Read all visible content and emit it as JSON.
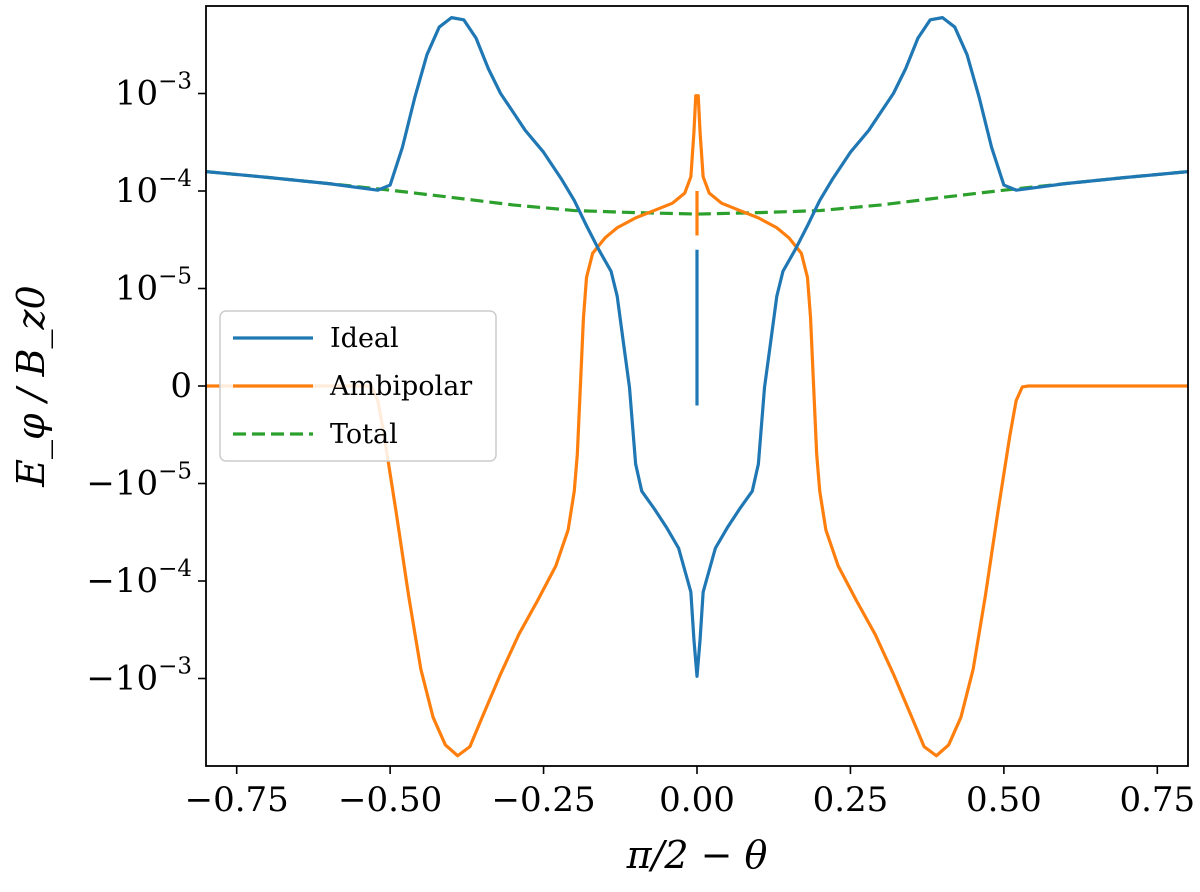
{
  "chart_data": {
    "type": "line",
    "title": "",
    "xlabel": "π/2 − θ",
    "ylabel": "E_φ / B_z0",
    "xlim": [
      -0.8,
      0.8
    ],
    "y_scale": "symlog",
    "y_linthresh": 1e-05,
    "y_decades_shown_positive": [
      -5,
      -4,
      -3
    ],
    "y_decades_shown_negative": [
      -5,
      -4,
      -3
    ],
    "ylim": [
      -0.0063,
      0.0061
    ],
    "grid": false,
    "legend_position": "center-left",
    "x_ticks": [
      {
        "value": -0.75,
        "label": "−0.75"
      },
      {
        "value": -0.5,
        "label": "−0.50"
      },
      {
        "value": -0.25,
        "label": "−0.25"
      },
      {
        "value": 0.0,
        "label": "0.00"
      },
      {
        "value": 0.25,
        "label": "0.25"
      },
      {
        "value": 0.5,
        "label": "0.50"
      },
      {
        "value": 0.75,
        "label": "0.75"
      }
    ],
    "y_ticks": [
      {
        "value": 0.001,
        "base": "10",
        "exp": "−3"
      },
      {
        "value": 0.0001,
        "base": "10",
        "exp": "−4"
      },
      {
        "value": 1e-05,
        "base": "10",
        "exp": "−5"
      },
      {
        "value": 0,
        "base": "0",
        "exp": ""
      },
      {
        "value": -1e-05,
        "base": "−10",
        "exp": "−5"
      },
      {
        "value": -0.0001,
        "base": "−10",
        "exp": "−4"
      },
      {
        "value": -0.001,
        "base": "−10",
        "exp": "−3"
      }
    ],
    "series": [
      {
        "name": "Ideal",
        "color": "#1f77b4",
        "dash": "solid",
        "segments": [
          [
            [
              -0.8,
              0.000158
            ],
            [
              -0.7,
              0.000138
            ],
            [
              -0.6,
              0.000119
            ],
            [
              -0.52,
              0.000102
            ],
            [
              -0.5,
              0.000115
            ],
            [
              -0.48,
              0.00028
            ],
            [
              -0.46,
              0.0009
            ],
            [
              -0.44,
              0.0025
            ],
            [
              -0.42,
              0.0048
            ],
            [
              -0.4,
              0.006
            ],
            [
              -0.38,
              0.0057
            ],
            [
              -0.36,
              0.0037
            ],
            [
              -0.34,
              0.0018
            ],
            [
              -0.32,
              0.001
            ],
            [
              -0.3,
              0.00065
            ],
            [
              -0.28,
              0.00042
            ],
            [
              -0.25,
              0.00025
            ],
            [
              -0.22,
              0.00013
            ],
            [
              -0.2,
              8e-05
            ],
            [
              -0.18,
              4.4e-05
            ],
            [
              -0.16,
              2.5e-05
            ],
            [
              -0.14,
              1.5e-05
            ],
            [
              -0.13,
              9.2e-06
            ],
            [
              -0.12,
              4.5e-06
            ],
            [
              -0.11,
              -1.5e-07
            ],
            [
              -0.1,
              -8e-06
            ],
            [
              -0.09,
              -1.2e-05
            ],
            [
              -0.07,
              -1.8e-05
            ],
            [
              -0.05,
              -2.8e-05
            ],
            [
              -0.03,
              -4.6e-05
            ],
            [
              -0.015,
              -0.0001
            ],
            [
              -0.01,
              -0.00013
            ],
            [
              -0.005,
              -0.0004
            ],
            [
              0.0,
              -0.00095
            ],
            [
              0.005,
              -0.0004
            ],
            [
              0.01,
              -0.00013
            ],
            [
              0.015,
              -0.0001
            ],
            [
              0.03,
              -4.6e-05
            ],
            [
              0.05,
              -2.8e-05
            ],
            [
              0.07,
              -1.8e-05
            ],
            [
              0.09,
              -1.2e-05
            ],
            [
              0.1,
              -8e-06
            ],
            [
              0.11,
              -1.5e-07
            ],
            [
              0.12,
              4.5e-06
            ],
            [
              0.13,
              9.2e-06
            ],
            [
              0.14,
              1.5e-05
            ],
            [
              0.16,
              2.5e-05
            ],
            [
              0.18,
              4.4e-05
            ],
            [
              0.2,
              8e-05
            ],
            [
              0.22,
              0.00013
            ],
            [
              0.25,
              0.00025
            ],
            [
              0.28,
              0.00042
            ],
            [
              0.3,
              0.00065
            ],
            [
              0.32,
              0.001
            ],
            [
              0.34,
              0.0018
            ],
            [
              0.36,
              0.0037
            ],
            [
              0.38,
              0.0057
            ],
            [
              0.4,
              0.006
            ],
            [
              0.42,
              0.0048
            ],
            [
              0.44,
              0.0025
            ],
            [
              0.46,
              0.0009
            ],
            [
              0.48,
              0.00028
            ],
            [
              0.5,
              0.000115
            ],
            [
              0.52,
              0.000102
            ],
            [
              0.6,
              0.000119
            ],
            [
              0.7,
              0.000138
            ],
            [
              0.8,
              0.000158
            ]
          ],
          [
            [
              0.0,
              2.5e-05
            ],
            [
              0.0,
              -2e-06
            ]
          ]
        ]
      },
      {
        "name": "Ambipolar",
        "color": "#ff7f0e",
        "dash": "solid",
        "segments": [
          [
            [
              -0.8,
              0.0
            ],
            [
              -0.7,
              0.0
            ],
            [
              -0.6,
              0.0
            ],
            [
              -0.54,
              0.0
            ],
            [
              -0.53,
              -1e-07
            ],
            [
              -0.52,
              -1.5e-06
            ],
            [
              -0.51,
              -5e-06
            ],
            [
              -0.5,
              -9e-06
            ],
            [
              -0.49,
              -2e-05
            ],
            [
              -0.47,
              -0.00014
            ],
            [
              -0.45,
              -0.0008
            ],
            [
              -0.43,
              -0.0025
            ],
            [
              -0.41,
              -0.0048
            ],
            [
              -0.39,
              -0.0062
            ],
            [
              -0.37,
              -0.005
            ],
            [
              -0.35,
              -0.0025
            ],
            [
              -0.32,
              -0.0009
            ],
            [
              -0.29,
              -0.00035
            ],
            [
              -0.26,
              -0.00016
            ],
            [
              -0.23,
              -7e-05
            ],
            [
              -0.21,
              -3e-05
            ],
            [
              -0.2,
              -1.2e-05
            ],
            [
              -0.195,
              -7e-06
            ],
            [
              -0.19,
              0.0
            ],
            [
              -0.185,
              7e-06
            ],
            [
              -0.18,
              1.3e-05
            ],
            [
              -0.17,
              2.3e-05
            ],
            [
              -0.15,
              3.3e-05
            ],
            [
              -0.13,
              4.2e-05
            ],
            [
              -0.1,
              5.3e-05
            ],
            [
              -0.07,
              6.3e-05
            ],
            [
              -0.04,
              7.5e-05
            ],
            [
              -0.02,
              9.5e-05
            ],
            [
              -0.01,
              0.00014
            ],
            [
              -0.005,
              0.0004
            ],
            [
              -0.002,
              0.00095
            ],
            [
              0.002,
              0.00095
            ],
            [
              0.005,
              0.0004
            ],
            [
              0.01,
              0.00014
            ],
            [
              0.02,
              9.5e-05
            ],
            [
              0.04,
              7.5e-05
            ],
            [
              0.07,
              6.3e-05
            ],
            [
              0.1,
              5.3e-05
            ],
            [
              0.13,
              4.2e-05
            ],
            [
              0.15,
              3.3e-05
            ],
            [
              0.17,
              2.3e-05
            ],
            [
              0.18,
              1.3e-05
            ],
            [
              0.185,
              7e-06
            ],
            [
              0.19,
              0.0
            ],
            [
              0.195,
              -7e-06
            ],
            [
              0.2,
              -1.2e-05
            ],
            [
              0.21,
              -3e-05
            ],
            [
              0.23,
              -7e-05
            ],
            [
              0.26,
              -0.00016
            ],
            [
              0.29,
              -0.00035
            ],
            [
              0.32,
              -0.0009
            ],
            [
              0.35,
              -0.0025
            ],
            [
              0.37,
              -0.005
            ],
            [
              0.39,
              -0.0062
            ],
            [
              0.41,
              -0.0048
            ],
            [
              0.43,
              -0.0025
            ],
            [
              0.45,
              -0.0008
            ],
            [
              0.47,
              -0.00014
            ],
            [
              0.49,
              -2e-05
            ],
            [
              0.5,
              -9e-06
            ],
            [
              0.51,
              -5e-06
            ],
            [
              0.52,
              -1.5e-06
            ],
            [
              0.53,
              -1e-07
            ],
            [
              0.54,
              0.0
            ],
            [
              0.6,
              0.0
            ],
            [
              0.7,
              0.0
            ],
            [
              0.8,
              0.0
            ]
          ],
          [
            [
              0.0,
              0.0001
            ],
            [
              0.0,
              3.5e-05
            ]
          ]
        ]
      },
      {
        "name": "Total",
        "color": "#2ca02c",
        "dash": "dashed",
        "segments": [
          [
            [
              -0.8,
              0.000158
            ],
            [
              -0.7,
              0.000138
            ],
            [
              -0.6,
              0.000119
            ],
            [
              -0.5,
              0.000102
            ],
            [
              -0.4,
              8.6e-05
            ],
            [
              -0.3,
              7.2e-05
            ],
            [
              -0.2,
              6.3e-05
            ],
            [
              -0.1,
              6e-05
            ],
            [
              0.0,
              5.8e-05
            ],
            [
              0.1,
              6e-05
            ],
            [
              0.2,
              6.3e-05
            ],
            [
              0.3,
              7.2e-05
            ],
            [
              0.4,
              8.6e-05
            ],
            [
              0.5,
              0.000102
            ],
            [
              0.6,
              0.000119
            ],
            [
              0.7,
              0.000138
            ],
            [
              0.8,
              0.000158
            ]
          ]
        ]
      }
    ]
  }
}
